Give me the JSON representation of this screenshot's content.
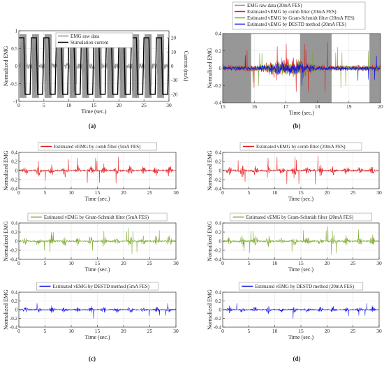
{
  "colors": {
    "raw": "#8c8c8c",
    "stim": "#000000",
    "comb": "#e31a1c",
    "gs": "#7aa82b",
    "destd": "#1010e6"
  },
  "panel_labels": [
    "(a)",
    "(b)",
    "(c)",
    "(d)"
  ],
  "chart_data": [
    {
      "id": "a",
      "type": "line",
      "xlabel": "Time (sec.)",
      "ylabel": "Normalized EMG",
      "y2label": "Current (mA)",
      "xlim": [
        0,
        30
      ],
      "ylim": [
        -1,
        1
      ],
      "y2lim": [
        -25,
        25
      ],
      "xticks": [
        0,
        5,
        10,
        15,
        20,
        25,
        30
      ],
      "yticks": [
        -1,
        -0.5,
        0,
        0.5,
        1
      ],
      "y2ticks": [
        -20,
        -10,
        0,
        10,
        20
      ],
      "grid": true,
      "legend_position": "top-center",
      "series": [
        {
          "name": "EMG raw data",
          "kind": "emg",
          "color_key": "raw",
          "amplitude": 0.9,
          "period_s": 2.5,
          "duty": 0.55
        },
        {
          "name": "Stimulation current",
          "kind": "square",
          "color_key": "stim",
          "amplitude_mA": 20,
          "period_s": 2.5
        }
      ]
    },
    {
      "id": "b",
      "type": "line",
      "xlabel": "Time (sec.)",
      "ylabel": "Normalized EMG",
      "xlim": [
        15,
        20
      ],
      "ylim": [
        -0.4,
        0.4
      ],
      "xticks": [
        15,
        16,
        17,
        18,
        19,
        20
      ],
      "yticks": [
        -0.4,
        -0.2,
        0,
        0.2,
        0.4
      ],
      "grid": true,
      "legend_position": "top",
      "stim_on_intervals": [
        [
          15,
          15.9
        ],
        [
          17.45,
          18.45
        ],
        [
          19.65,
          20
        ]
      ],
      "series": [
        {
          "name": "EMG raw data (20mA FES)",
          "kind": "raw_blocks",
          "color_key": "raw"
        },
        {
          "name": "Estimated vEMG by comb filter (20mA FES)",
          "kind": "emg",
          "color_key": "comb",
          "amplitude": 0.12
        },
        {
          "name": "Estimated vEMG by Gram-Schmidt filter (20mA FES)",
          "kind": "emg",
          "color_key": "gs",
          "amplitude": 0.1
        },
        {
          "name": "Estimated vEMG by DESTD method (20mA FES)",
          "kind": "emg",
          "color_key": "destd",
          "amplitude": 0.08
        }
      ]
    },
    {
      "id": "c1",
      "type": "line",
      "xlabel": "Time (sec.)",
      "ylabel": "Normalized EMG",
      "xlim": [
        0,
        30
      ],
      "ylim": [
        -0.4,
        0.4
      ],
      "xticks": [
        0,
        5,
        10,
        15,
        20,
        25,
        30
      ],
      "yticks": [
        -0.4,
        -0.2,
        0,
        0.2,
        0.4
      ],
      "grid": true,
      "series": [
        {
          "name": "Estimated vEMG by comb filter (5mA FES)",
          "kind": "emg",
          "color_key": "comb",
          "amplitude": 0.12
        }
      ]
    },
    {
      "id": "c2",
      "type": "line",
      "xlabel": "Time (sec.)",
      "ylabel": "Normalized EMG",
      "xlim": [
        0,
        30
      ],
      "ylim": [
        -0.4,
        0.4
      ],
      "xticks": [
        0,
        5,
        10,
        15,
        20,
        25,
        30
      ],
      "yticks": [
        -0.4,
        -0.2,
        0,
        0.2,
        0.4
      ],
      "grid": true,
      "series": [
        {
          "name": "Estimated vEMG by Gram-Schmidt filter (5mA FES)",
          "kind": "emg",
          "color_key": "gs",
          "amplitude": 0.12
        }
      ]
    },
    {
      "id": "c3",
      "type": "line",
      "xlabel": "Time (sec.)",
      "ylabel": "Normalized EMG",
      "xlim": [
        0,
        30
      ],
      "ylim": [
        -0.4,
        0.4
      ],
      "xticks": [
        0,
        5,
        10,
        15,
        20,
        25,
        30
      ],
      "yticks": [
        -0.4,
        -0.2,
        0,
        0.2,
        0.4
      ],
      "grid": true,
      "series": [
        {
          "name": "Estimated vEMG by DESTD method (5mA FES)",
          "kind": "emg",
          "color_key": "destd",
          "amplitude": 0.08
        }
      ]
    },
    {
      "id": "d1",
      "type": "line",
      "xlabel": "Time (sec.)",
      "ylabel": "Normalized EMG",
      "xlim": [
        0,
        30
      ],
      "ylim": [
        -0.4,
        0.4
      ],
      "xticks": [
        0,
        5,
        10,
        15,
        20,
        25,
        30
      ],
      "yticks": [
        -0.4,
        -0.2,
        0,
        0.2,
        0.4
      ],
      "grid": true,
      "series": [
        {
          "name": "Estimated vEMG by comb filter (20mA FES)",
          "kind": "emg",
          "color_key": "comb",
          "amplitude": 0.13
        }
      ]
    },
    {
      "id": "d2",
      "type": "line",
      "xlabel": "Time (sec.)",
      "ylabel": "Normalized EMG",
      "xlim": [
        0,
        30
      ],
      "ylim": [
        -0.4,
        0.4
      ],
      "xticks": [
        0,
        5,
        10,
        15,
        20,
        25,
        30
      ],
      "yticks": [
        -0.4,
        -0.2,
        0,
        0.2,
        0.4
      ],
      "grid": true,
      "series": [
        {
          "name": "Estimated vEMG by Gram-Schmidt filter (20mA FES)",
          "kind": "emg",
          "color_key": "gs",
          "amplitude": 0.13
        }
      ]
    },
    {
      "id": "d3",
      "type": "line",
      "xlabel": "Time (sec.)",
      "ylabel": "Normalized EMG",
      "xlim": [
        0,
        30
      ],
      "ylim": [
        -0.4,
        0.4
      ],
      "xticks": [
        0,
        5,
        10,
        15,
        20,
        25,
        30
      ],
      "yticks": [
        -0.4,
        -0.2,
        0,
        0.2,
        0.4
      ],
      "grid": true,
      "series": [
        {
          "name": "Estimated vEMG by DESTD method (20mA FES)",
          "kind": "emg",
          "color_key": "destd",
          "amplitude": 0.08
        }
      ]
    }
  ]
}
